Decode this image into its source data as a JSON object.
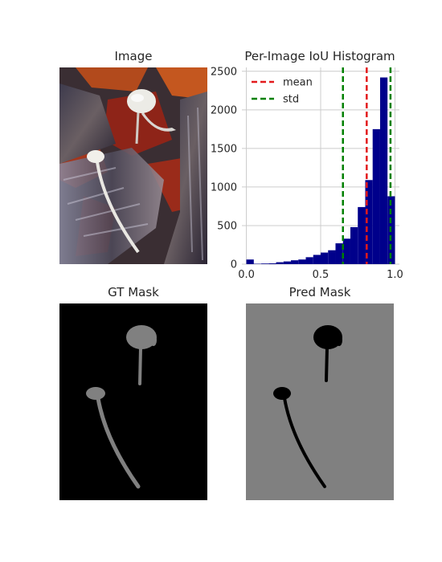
{
  "panels": {
    "image_title": "Image",
    "hist_title": "Per-Image IoU Histogram",
    "gt_title": "GT Mask",
    "pred_title": "Pred Mask"
  },
  "colors": {
    "bar": "#00008b",
    "mean_line": "#e31a1c",
    "std_line": "#008000",
    "grid": "#cccccc",
    "mask_fg_gt": "#808080",
    "mask_bg_gt": "#000000",
    "mask_fg_pred": "#000000",
    "mask_bg_pred": "#808080"
  },
  "chart_data": {
    "type": "bar",
    "title": "Per-Image IoU Histogram",
    "xlabel": "",
    "ylabel": "",
    "xlim": [
      -0.03,
      1.03
    ],
    "ylim": [
      0,
      2550
    ],
    "xticks": [
      0.0,
      0.5,
      1.0
    ],
    "xtick_labels": [
      "0.0",
      "0.5",
      "1.0"
    ],
    "yticks": [
      0,
      500,
      1000,
      1500,
      2000,
      2500
    ],
    "ytick_labels": [
      "0",
      "500",
      "1000",
      "1500",
      "2000",
      "2500"
    ],
    "grid": true,
    "bin_width": 0.05,
    "bins": [
      {
        "x0": 0.0,
        "value": 60
      },
      {
        "x0": 0.05,
        "value": 5
      },
      {
        "x0": 0.1,
        "value": 8
      },
      {
        "x0": 0.15,
        "value": 10
      },
      {
        "x0": 0.2,
        "value": 25
      },
      {
        "x0": 0.25,
        "value": 35
      },
      {
        "x0": 0.3,
        "value": 50
      },
      {
        "x0": 0.35,
        "value": 60
      },
      {
        "x0": 0.4,
        "value": 90
      },
      {
        "x0": 0.45,
        "value": 120
      },
      {
        "x0": 0.5,
        "value": 150
      },
      {
        "x0": 0.55,
        "value": 180
      },
      {
        "x0": 0.6,
        "value": 270
      },
      {
        "x0": 0.65,
        "value": 330
      },
      {
        "x0": 0.7,
        "value": 480
      },
      {
        "x0": 0.75,
        "value": 740
      },
      {
        "x0": 0.8,
        "value": 1090
      },
      {
        "x0": 0.85,
        "value": 1750
      },
      {
        "x0": 0.9,
        "value": 2420
      },
      {
        "x0": 0.95,
        "value": 880
      }
    ],
    "vlines": [
      {
        "label": "mean",
        "x": 0.81,
        "color": "#e31a1c"
      },
      {
        "label": "std",
        "x": 0.65,
        "color": "#008000"
      },
      {
        "label": "",
        "x": 0.97,
        "color": "#008000"
      }
    ],
    "legend": {
      "placement": "top-left",
      "entries": [
        {
          "label": "mean",
          "color": "#e31a1c"
        },
        {
          "label": "std",
          "color": "#008000"
        }
      ]
    }
  }
}
